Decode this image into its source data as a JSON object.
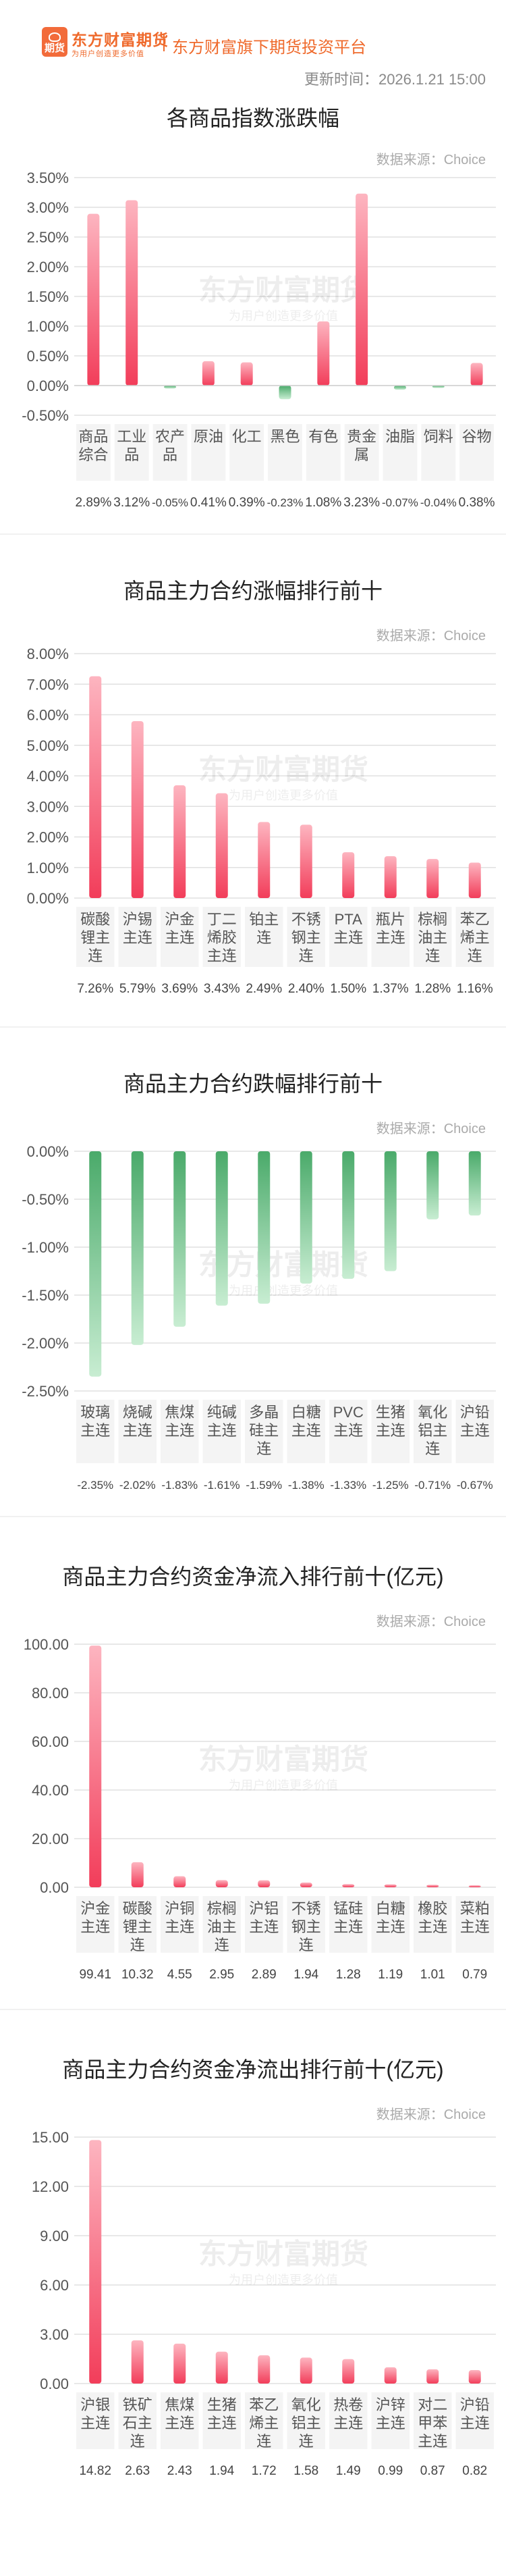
{
  "header": {
    "logo_badge_text": "期货",
    "brand_name": "东方财富期货",
    "brand_slogan": "为用户创造更多价值",
    "platform_name": "东方财富旗下期货投资平台",
    "update_time": "更新时间：2026.1.21 15:00"
  },
  "watermark": {
    "name": "东方财富期货",
    "slogan": "为用户创造更多价值"
  },
  "colors": {
    "up_top": "#fdb5c0",
    "up_bottom": "#f23d5a",
    "down_top": "#4aaa6a",
    "down_bottom": "#c8edd2",
    "axis_text": "#555555",
    "grid": "#e0e0e0"
  },
  "chart_data": [
    {
      "type": "bar",
      "title": "各商品指数涨跌幅",
      "source": "数据来源：Choice",
      "categories": [
        "商品综合",
        "工业品",
        "农产品",
        "原油",
        "化工",
        "黑色",
        "有色",
        "贵金属",
        "油脂",
        "饲料",
        "谷物"
      ],
      "values": [
        2.89,
        3.12,
        -0.05,
        0.41,
        0.39,
        -0.23,
        1.08,
        3.23,
        -0.07,
        -0.04,
        0.38
      ],
      "value_labels": [
        "2.89%",
        "3.12%",
        "-0.05%",
        "0.41%",
        "0.39%",
        "-0.23%",
        "1.08%",
        "3.23%",
        "-0.07%",
        "-0.04%",
        "0.38%"
      ],
      "yticks": [
        "3.50%",
        "3.00%",
        "2.50%",
        "2.00%",
        "1.50%",
        "1.00%",
        "0.50%",
        "0.00%",
        "-0.50%"
      ],
      "ylim": [
        -0.5,
        3.5
      ],
      "unit": "%"
    },
    {
      "type": "bar",
      "title": "商品主力合约涨幅排行前十",
      "source": "数据来源：Choice",
      "categories": [
        "碳酸锂主连",
        "沪锡主连",
        "沪金主连",
        "丁二烯胶主连",
        "铂主连",
        "不锈钢主连",
        "PTA主连",
        "瓶片主连",
        "棕榈油主连",
        "苯乙烯主连"
      ],
      "values": [
        7.26,
        5.79,
        3.69,
        3.43,
        2.49,
        2.4,
        1.5,
        1.37,
        1.28,
        1.16
      ],
      "value_labels": [
        "7.26%",
        "5.79%",
        "3.69%",
        "3.43%",
        "2.49%",
        "2.40%",
        "1.50%",
        "1.37%",
        "1.28%",
        "1.16%"
      ],
      "yticks": [
        "8.00%",
        "7.00%",
        "6.00%",
        "5.00%",
        "4.00%",
        "3.00%",
        "2.00%",
        "1.00%",
        "0.00%"
      ],
      "ylim": [
        0,
        8
      ],
      "unit": "%"
    },
    {
      "type": "bar",
      "title": "商品主力合约跌幅排行前十",
      "source": "数据来源：Choice",
      "categories": [
        "玻璃主连",
        "烧碱主连",
        "焦煤主连",
        "纯碱主连",
        "多晶硅主连",
        "白糖主连",
        "PVC主连",
        "生猪主连",
        "氧化铝主连",
        "沪铅主连"
      ],
      "values": [
        -2.35,
        -2.02,
        -1.83,
        -1.61,
        -1.59,
        -1.38,
        -1.33,
        -1.25,
        -0.71,
        -0.67
      ],
      "value_labels": [
        "-2.35%",
        "-2.02%",
        "-1.83%",
        "-1.61%",
        "-1.59%",
        "-1.38%",
        "-1.33%",
        "-1.25%",
        "-0.71%",
        "-0.67%"
      ],
      "yticks": [
        "0.00%",
        "-0.50%",
        "-1.00%",
        "-1.50%",
        "-2.00%",
        "-2.50%"
      ],
      "ylim": [
        -2.5,
        0
      ],
      "unit": "%"
    },
    {
      "type": "bar",
      "title": "商品主力合约资金净流入排行前十(亿元)",
      "source": "数据来源：Choice",
      "categories": [
        "沪金主连",
        "碳酸锂主连",
        "沪铜主连",
        "棕榈油主连",
        "沪铝主连",
        "不锈钢主连",
        "锰硅主连",
        "白糖主连",
        "橡胶主连",
        "菜粕主连"
      ],
      "values": [
        99.41,
        10.32,
        4.55,
        2.95,
        2.89,
        1.94,
        1.28,
        1.19,
        1.01,
        0.79
      ],
      "value_labels": [
        "99.41",
        "10.32",
        "4.55",
        "2.95",
        "2.89",
        "1.94",
        "1.28",
        "1.19",
        "1.01",
        "0.79"
      ],
      "yticks": [
        "100.00",
        "80.00",
        "60.00",
        "40.00",
        "20.00",
        "0.00"
      ],
      "ylim": [
        0,
        100
      ],
      "unit": "亿元"
    },
    {
      "type": "bar",
      "title": "商品主力合约资金净流出排行前十(亿元)",
      "source": "数据来源：Choice",
      "categories": [
        "沪银主连",
        "铁矿石主连",
        "焦煤主连",
        "生猪主连",
        "苯乙烯主连",
        "氧化铝主连",
        "热卷主连",
        "沪锌主连",
        "对二甲苯主连",
        "沪铅主连"
      ],
      "values": [
        14.82,
        2.63,
        2.43,
        1.94,
        1.72,
        1.58,
        1.49,
        0.99,
        0.87,
        0.82
      ],
      "value_labels": [
        "14.82",
        "2.63",
        "2.43",
        "1.94",
        "1.72",
        "1.58",
        "1.49",
        "0.99",
        "0.87",
        "0.82"
      ],
      "yticks": [
        "15.00",
        "12.00",
        "9.00",
        "6.00",
        "3.00",
        "0.00"
      ],
      "ylim": [
        0,
        15
      ],
      "unit": "亿元"
    }
  ]
}
